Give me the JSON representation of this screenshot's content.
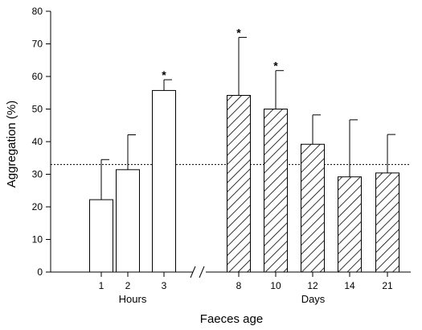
{
  "chart_data": {
    "type": "bar",
    "ylabel": "Aggregation (%)",
    "xlabel": "Faeces age",
    "ylim": [
      0,
      80
    ],
    "yticks": [
      0,
      10,
      20,
      30,
      40,
      50,
      60,
      70,
      80
    ],
    "reference_line": 33,
    "axis_break": true,
    "groups": [
      {
        "label": "Hours",
        "fill": "open"
      },
      {
        "label": "Days",
        "fill": "hatched"
      }
    ],
    "bars": [
      {
        "category": "1",
        "group": 0,
        "value": 22.2,
        "error": 12.3,
        "significant": false
      },
      {
        "category": "2",
        "group": 0,
        "value": 31.4,
        "error": 10.7,
        "significant": false
      },
      {
        "category": "3",
        "group": 0,
        "value": 55.7,
        "error": 3.3,
        "significant": true
      },
      {
        "category": "8",
        "group": 1,
        "value": 54.2,
        "error": 17.8,
        "significant": true
      },
      {
        "category": "10",
        "group": 1,
        "value": 50.0,
        "error": 11.8,
        "significant": true
      },
      {
        "category": "12",
        "group": 1,
        "value": 39.2,
        "error": 9.0,
        "significant": false
      },
      {
        "category": "14",
        "group": 1,
        "value": 29.2,
        "error": 17.5,
        "significant": false
      },
      {
        "category": "21",
        "group": 1,
        "value": 30.4,
        "error": 11.8,
        "significant": false
      }
    ],
    "significance_marker": "*"
  }
}
